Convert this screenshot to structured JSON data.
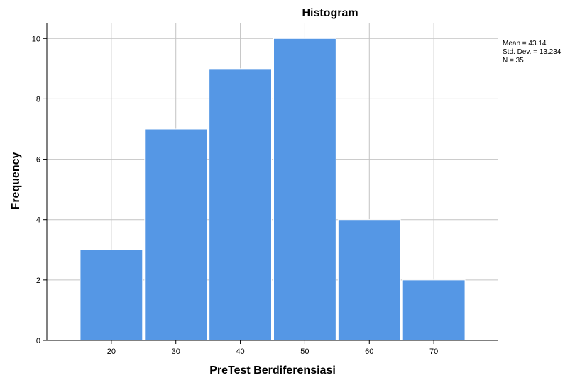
{
  "chart_data": {
    "type": "bar",
    "title": "Histogram",
    "xlabel": "PreTest Berdiferensiasi",
    "ylabel": "Frequency",
    "categories": [
      "20",
      "30",
      "40",
      "50",
      "60",
      "70"
    ],
    "bin_centers": [
      20,
      30,
      40,
      50,
      60,
      70
    ],
    "values": [
      3,
      7,
      9,
      10,
      4,
      2
    ],
    "xlim": [
      10,
      80
    ],
    "ylim": [
      0,
      10.5
    ],
    "yticks": [
      0,
      2,
      4,
      6,
      8,
      10
    ],
    "grid": true,
    "bar_color": "#5597e5",
    "stats": {
      "mean": "Mean = 43.14",
      "std_dev": "Std. Dev. = 13.234",
      "n": "N = 35"
    }
  }
}
